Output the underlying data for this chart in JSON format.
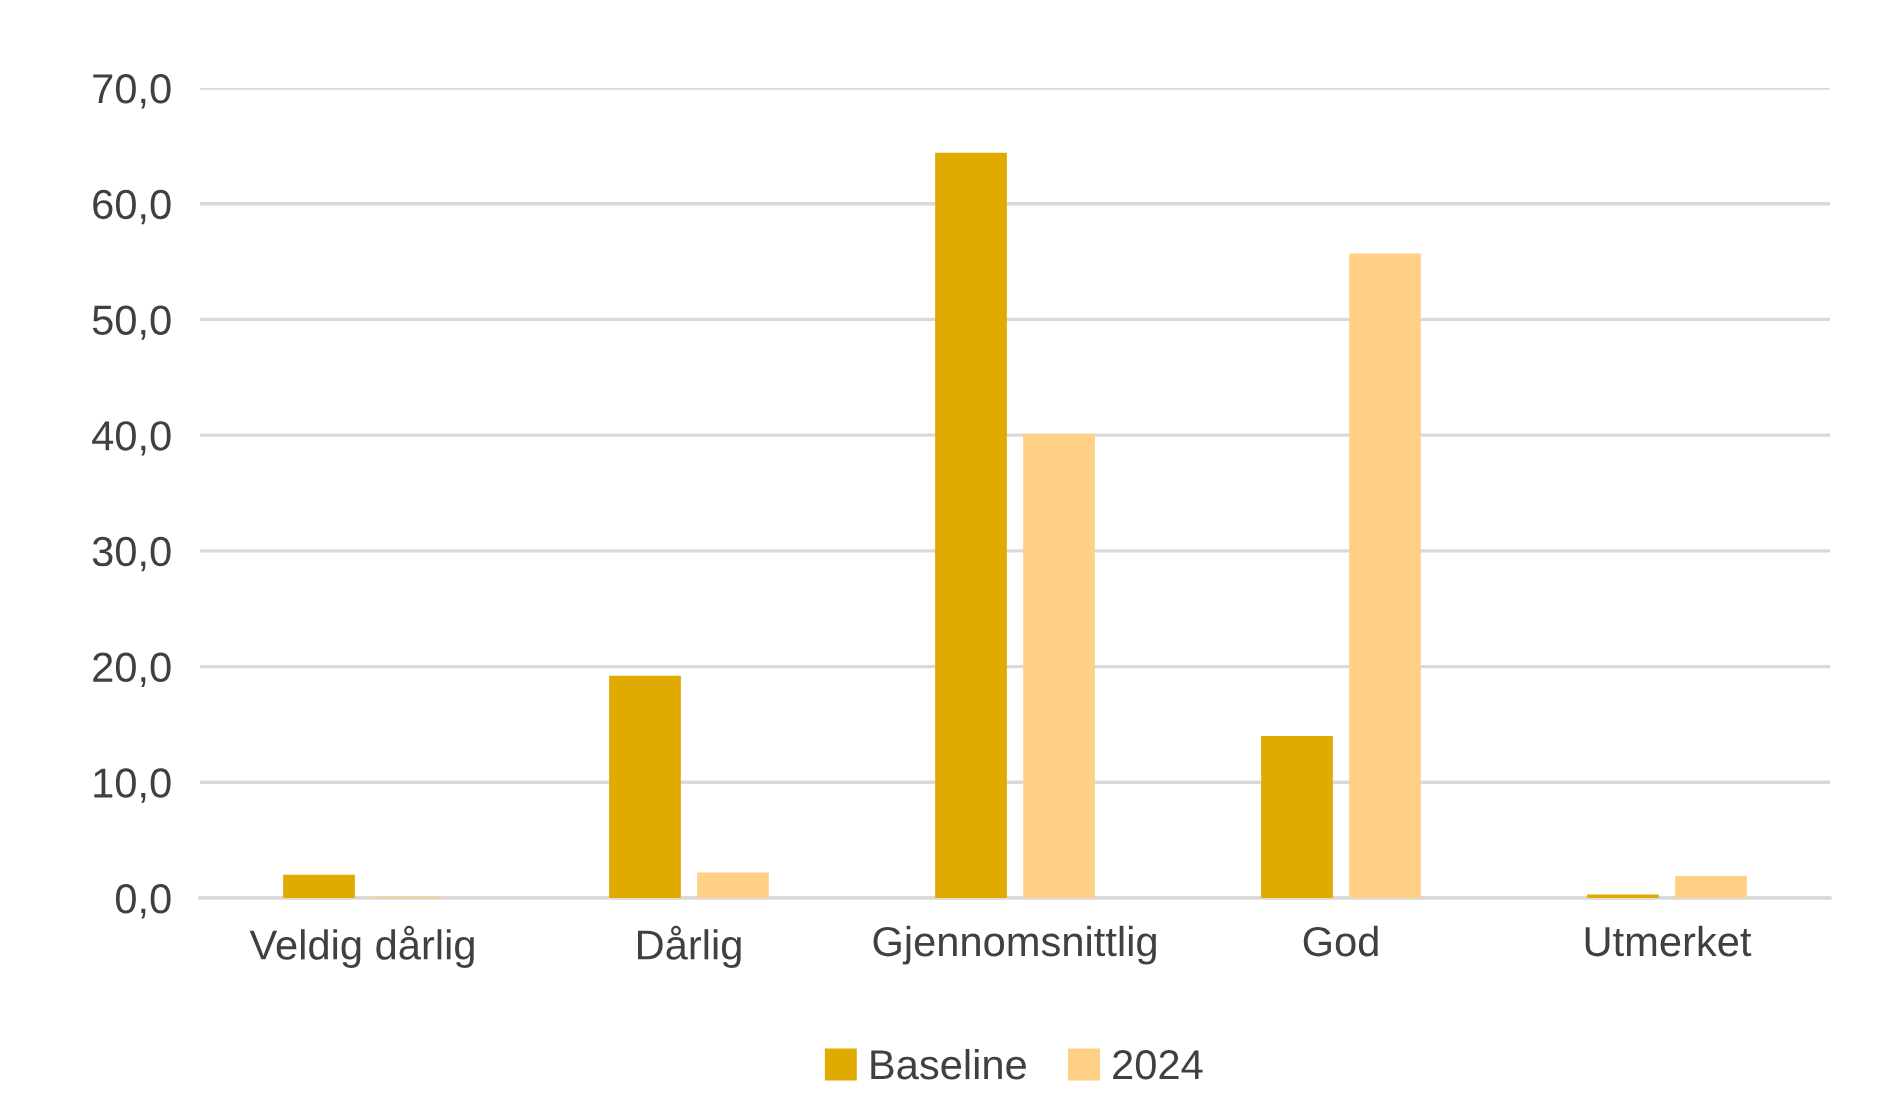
{
  "chart_data": {
    "type": "bar",
    "categories": [
      "Veldig dårlig",
      "Dårlig",
      "Gjennomsnittlig",
      "God",
      "Utmerket"
    ],
    "series": [
      {
        "name": "Baseline",
        "color": "#e1aa00",
        "values": [
          2.0,
          19.2,
          64.4,
          14.0,
          0.3
        ]
      },
      {
        "name": "2024",
        "color": "#ffd085",
        "values": [
          0.1,
          2.2,
          40.1,
          55.7,
          1.9
        ]
      }
    ],
    "ylim": [
      0,
      70
    ],
    "yticks": [
      {
        "value": 0,
        "label": "0,0"
      },
      {
        "value": 10,
        "label": "10,0"
      },
      {
        "value": 20,
        "label": "20,0"
      },
      {
        "value": 30,
        "label": "30,0"
      },
      {
        "value": 40,
        "label": "40,0"
      },
      {
        "value": 50,
        "label": "50,0"
      },
      {
        "value": 60,
        "label": "60,0"
      },
      {
        "value": 70,
        "label": "70,0"
      }
    ],
    "grid": "y",
    "legend": "bottom"
  }
}
